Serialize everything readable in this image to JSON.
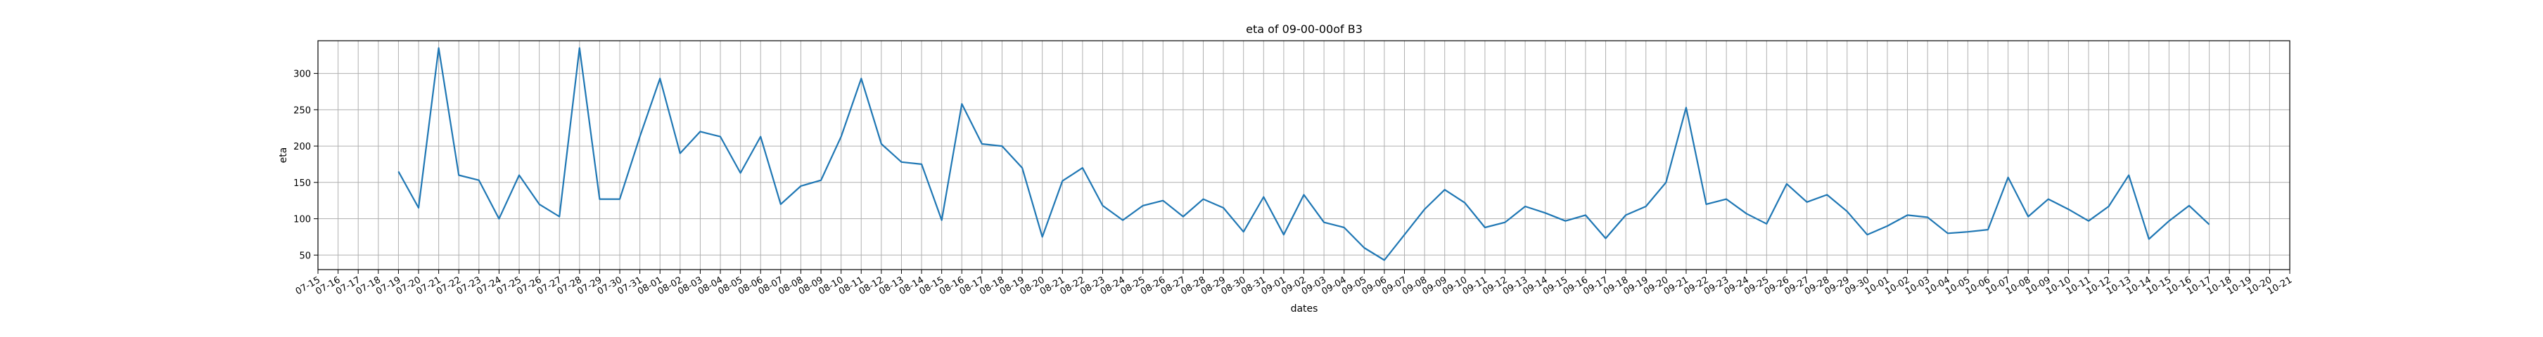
{
  "chart_data": {
    "type": "line",
    "title": "eta of 09-00-00of B3",
    "xlabel": "dates",
    "ylabel": "eta",
    "grid": true,
    "legend": "none",
    "line_color": "#1f77b4",
    "year": 2024,
    "xlim": [
      "07-15",
      "10-21"
    ],
    "ylim": [
      30,
      345
    ],
    "y_ticks": [
      50,
      100,
      150,
      200,
      250,
      300
    ],
    "x_ticks": [
      "07-15",
      "07-16",
      "07-17",
      "07-18",
      "07-19",
      "07-20",
      "07-21",
      "07-22",
      "07-23",
      "07-24",
      "07-25",
      "07-26",
      "07-27",
      "07-28",
      "07-29",
      "07-30",
      "07-31",
      "08-01",
      "08-02",
      "08-03",
      "08-04",
      "08-05",
      "08-06",
      "08-07",
      "08-08",
      "08-09",
      "08-10",
      "08-11",
      "08-12",
      "08-13",
      "08-14",
      "08-15",
      "08-16",
      "08-17",
      "08-18",
      "08-19",
      "08-20",
      "08-21",
      "08-22",
      "08-23",
      "08-24",
      "08-25",
      "08-26",
      "08-27",
      "08-28",
      "08-29",
      "08-30",
      "08-31",
      "09-01",
      "09-02",
      "09-03",
      "09-04",
      "09-05",
      "09-06",
      "09-07",
      "09-08",
      "09-09",
      "09-10",
      "09-11",
      "09-12",
      "09-13",
      "09-14",
      "09-15",
      "09-16",
      "09-17",
      "09-18",
      "09-19",
      "09-20",
      "09-21",
      "09-22",
      "09-23",
      "09-24",
      "09-25",
      "09-26",
      "09-27",
      "09-28",
      "09-29",
      "09-30",
      "10-01",
      "10-02",
      "10-03",
      "10-04",
      "10-05",
      "10-06",
      "10-07",
      "10-08",
      "10-09",
      "10-10",
      "10-11",
      "10-12",
      "10-13",
      "10-14",
      "10-15",
      "10-16",
      "10-17",
      "10-18",
      "10-19",
      "10-20",
      "10-21"
    ],
    "series": [
      {
        "x": [
          "07-19",
          "07-20",
          "07-21",
          "07-22",
          "07-23",
          "07-24",
          "07-25",
          "07-26",
          "07-27",
          "07-28",
          "07-29",
          "07-30",
          "07-31",
          "08-01",
          "08-02",
          "08-03",
          "08-04",
          "08-05",
          "08-06",
          "08-07",
          "08-08",
          "08-09",
          "08-10",
          "08-11",
          "08-12",
          "08-13",
          "08-14",
          "08-15",
          "08-16",
          "08-17",
          "08-18",
          "08-19",
          "08-20",
          "08-21",
          "08-22",
          "08-23",
          "08-24",
          "08-25",
          "08-26",
          "08-27",
          "08-28",
          "08-29",
          "08-30",
          "08-31",
          "09-01",
          "09-02",
          "09-03",
          "09-04",
          "09-05",
          "09-06",
          "09-07",
          "09-08",
          "09-09",
          "09-10",
          "09-11",
          "09-12",
          "09-13",
          "09-14",
          "09-15",
          "09-16",
          "09-17",
          "09-18",
          "09-19",
          "09-20",
          "09-21",
          "09-22",
          "09-23",
          "09-24",
          "09-25",
          "09-26",
          "09-27",
          "09-28",
          "09-29",
          "09-30",
          "10-01",
          "10-02",
          "10-03",
          "10-04",
          "10-05",
          "10-06",
          "10-07",
          "10-08",
          "10-09",
          "10-10",
          "10-11",
          "10-12",
          "10-13",
          "10-14",
          "10-15",
          "10-16",
          "10-17"
        ],
        "values": [
          165,
          115,
          335,
          160,
          153,
          100,
          160,
          120,
          103,
          335,
          127,
          127,
          213,
          293,
          190,
          220,
          213,
          163,
          213,
          120,
          145,
          153,
          213,
          293,
          203,
          178,
          175,
          98,
          258,
          203,
          200,
          170,
          75,
          152,
          170,
          118,
          98,
          118,
          125,
          103,
          127,
          115,
          82,
          130,
          78,
          133,
          95,
          88,
          60,
          43,
          78,
          113,
          140,
          122,
          88,
          95,
          117,
          108,
          97,
          105,
          73,
          105,
          117,
          150,
          253,
          120,
          127,
          107,
          93,
          148,
          123,
          133,
          110,
          78,
          90,
          105,
          102,
          80,
          82,
          85,
          157,
          103,
          127,
          113,
          97,
          117,
          160,
          72,
          97,
          118,
          92
        ]
      }
    ]
  }
}
